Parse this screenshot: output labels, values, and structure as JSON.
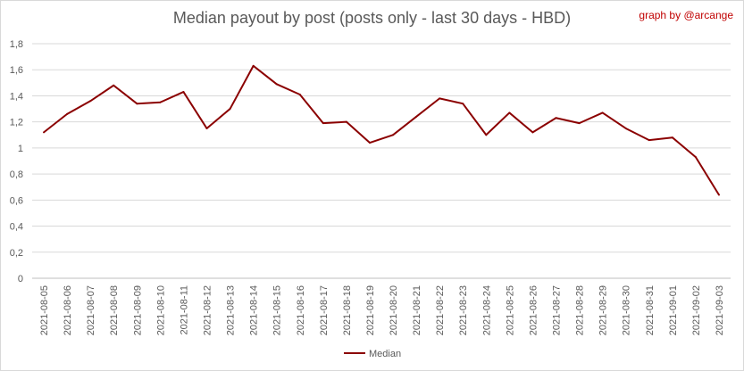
{
  "chart_data": {
    "type": "line",
    "title": "Median payout by post (posts only - last 30 days - HBD)",
    "credit": "graph by @arcange",
    "categories": [
      "2021-08-05",
      "2021-08-06",
      "2021-08-07",
      "2021-08-08",
      "2021-08-09",
      "2021-08-10",
      "2021-08-11",
      "2021-08-12",
      "2021-08-13",
      "2021-08-14",
      "2021-08-15",
      "2021-08-16",
      "2021-08-17",
      "2021-08-18",
      "2021-08-19",
      "2021-08-20",
      "2021-08-21",
      "2021-08-22",
      "2021-08-23",
      "2021-08-24",
      "2021-08-25",
      "2021-08-26",
      "2021-08-27",
      "2021-08-28",
      "2021-08-29",
      "2021-08-30",
      "2021-08-31",
      "2021-09-01",
      "2021-09-02",
      "2021-09-03"
    ],
    "series": [
      {
        "name": "Median",
        "color": "#8b0000",
        "values": [
          1.12,
          1.26,
          1.36,
          1.48,
          1.34,
          1.35,
          1.43,
          1.15,
          1.3,
          1.63,
          1.49,
          1.41,
          1.19,
          1.2,
          1.04,
          1.1,
          1.24,
          1.38,
          1.34,
          1.1,
          1.27,
          1.12,
          1.23,
          1.19,
          1.27,
          1.15,
          1.06,
          1.08,
          0.93,
          0.64
        ]
      }
    ],
    "ylim": [
      0,
      1.8
    ],
    "yticks": [
      "0",
      "0,2",
      "0,4",
      "0,6",
      "0,8",
      "1",
      "1,2",
      "1,4",
      "1,6",
      "1,8"
    ],
    "grid": true,
    "legend": "bottom-center"
  }
}
